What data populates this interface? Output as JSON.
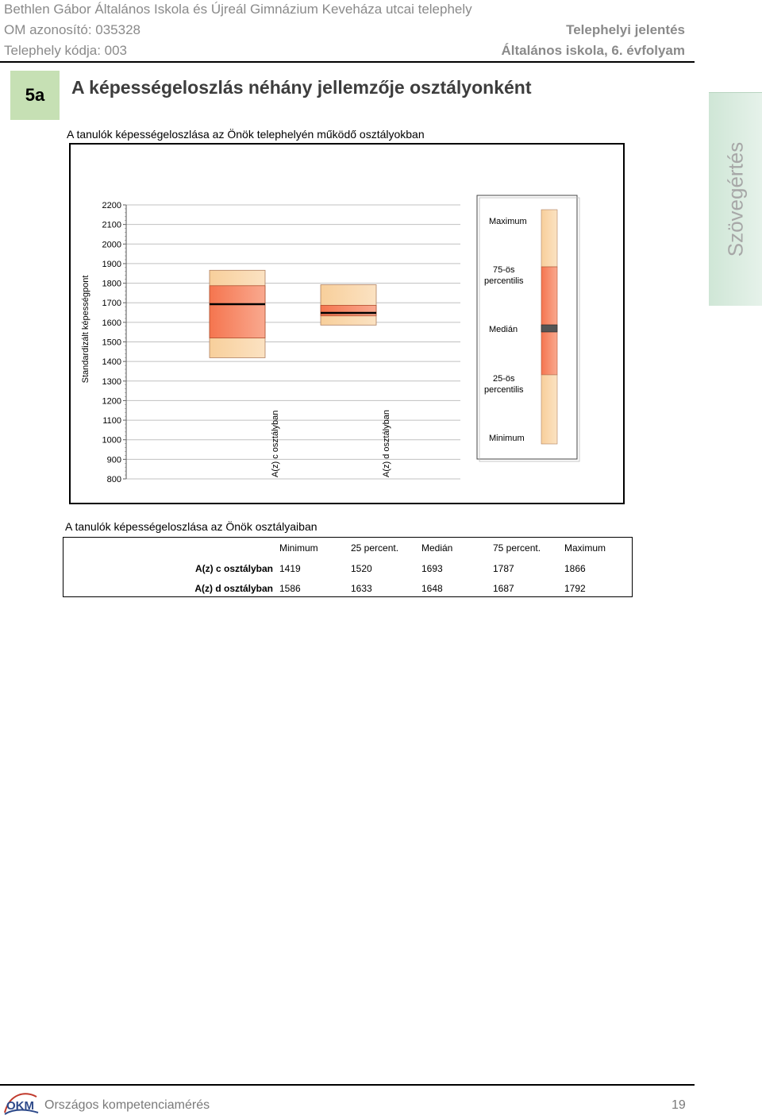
{
  "header": {
    "school": "Bethlen Gábor Általános Iskola és Újreál Gimnázium Keveháza utcai telephely",
    "om_id": "OM azonosító: 035328",
    "site_code": "Telephely kódja: 003",
    "report_type": "Telephelyi jelentés",
    "grade": "Általános iskola, 6. évfolyam"
  },
  "section": {
    "number": "5a",
    "title": "A képességeloszlás néhány jellemzője osztályonként",
    "chart_caption": "A tanulók képességeloszlása az Önök telephelyén működő osztályokban",
    "table_caption": "A tanulók képességeloszlása az Önök osztályaiban"
  },
  "side_tab": "Szövegértés",
  "chart_data": {
    "type": "boxplot",
    "ylabel": "Standardizált képességpont",
    "ylim": [
      800,
      2200
    ],
    "yticks": [
      2200,
      2100,
      2000,
      1900,
      1800,
      1700,
      1600,
      1500,
      1400,
      1300,
      1200,
      1100,
      1000,
      900,
      800
    ],
    "categories": [
      "A(z) c osztályban",
      "A(z) d osztályban"
    ],
    "series": [
      {
        "label": "A(z) c osztályban",
        "min": 1419,
        "q1": 1520,
        "median": 1693,
        "q3": 1787,
        "max": 1866
      },
      {
        "label": "A(z) d osztályban",
        "min": 1586,
        "q1": 1633,
        "median": 1648,
        "q3": 1687,
        "max": 1792
      }
    ],
    "legend": {
      "maximum": "Maximum",
      "p75_line1": "75-ös",
      "p75_line2": "percentilis",
      "median": "Medián",
      "p25_line1": "25-ös",
      "p25_line2": "percentilis",
      "minimum": "Minimum"
    },
    "colors": {
      "outer": "#f8cf9b",
      "inner": "#f5754f",
      "median": "#000000",
      "grid": "#c0c0c0"
    }
  },
  "table": {
    "headers": [
      "Minimum",
      "25 percent.",
      "Medián",
      "75 percent.",
      "Maximum"
    ],
    "rows": [
      {
        "label": "A(z) c osztályban",
        "values": [
          "1419",
          "1520",
          "1693",
          "1787",
          "1866"
        ]
      },
      {
        "label": "A(z) d osztályban",
        "values": [
          "1586",
          "1633",
          "1648",
          "1687",
          "1792"
        ]
      }
    ]
  },
  "footer": {
    "text": "Országos kompetenciamérés",
    "page": "19",
    "logo_text": "OKM"
  }
}
